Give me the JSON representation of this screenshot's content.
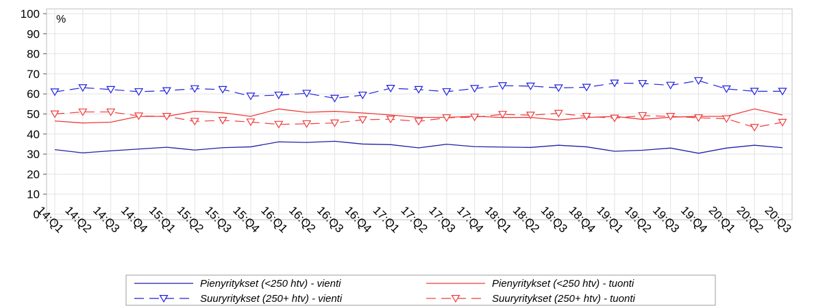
{
  "chart_data": {
    "type": "line",
    "unit_label": "%",
    "ylim": [
      0,
      100
    ],
    "yticks": [
      0,
      10,
      20,
      30,
      40,
      50,
      60,
      70,
      80,
      90,
      100
    ],
    "grid": true,
    "legend_position": "bottom",
    "categories": [
      "14:Q1",
      "14:Q2",
      "14:Q3",
      "14:Q4",
      "15:Q1",
      "15:Q2",
      "15:Q3",
      "15:Q4",
      "16:Q1",
      "16:Q2",
      "16:Q3",
      "16:Q4",
      "17:Q1",
      "17:Q2",
      "17:Q3",
      "17:Q4",
      "18:Q1",
      "18:Q2",
      "18:Q3",
      "18:Q4",
      "19:Q1",
      "19:Q2",
      "19:Q3",
      "19:Q4",
      "20:Q1",
      "20:Q2",
      "20:Q3"
    ],
    "series": [
      {
        "name": "Pienyritykset (<250 htv) - vienti",
        "color": "#1f1fa8",
        "dash": "solid",
        "marker": "none",
        "values": [
          32.2,
          30.6,
          31.6,
          32.5,
          33.4,
          32.0,
          33.2,
          33.6,
          36.1,
          35.8,
          36.4,
          35.0,
          34.7,
          33.1,
          34.9,
          33.7,
          33.5,
          33.3,
          34.4,
          33.6,
          31.4,
          31.9,
          33.0,
          30.4,
          33.0,
          34.4,
          33.2
        ]
      },
      {
        "name": "Pienyritykset (<250 htv) - tuonti",
        "color": "#f03a3a",
        "dash": "solid",
        "marker": "none",
        "values": [
          46.5,
          45.5,
          45.9,
          48.8,
          48.8,
          51.3,
          50.6,
          48.8,
          52.5,
          50.8,
          51.3,
          50.5,
          49.5,
          48.3,
          48.3,
          48.9,
          48.2,
          48.3,
          47.0,
          48.2,
          48.8,
          47.3,
          48.4,
          48.8,
          48.8,
          52.5,
          49.5
        ]
      },
      {
        "name": "Suuryritykset (250+ htv) - vienti",
        "color": "#1f1fe0",
        "dash": "dashed",
        "marker": "triangle-down",
        "values": [
          61.0,
          63.1,
          62.2,
          61.1,
          61.6,
          62.6,
          62.2,
          58.9,
          59.4,
          60.3,
          57.8,
          59.4,
          62.8,
          62.2,
          61.1,
          62.7,
          64.1,
          63.9,
          63.0,
          63.3,
          65.4,
          65.2,
          64.3,
          66.6,
          62.5,
          61.3,
          61.3
        ]
      },
      {
        "name": "Suuryritykset (250+ htv) - tuonti",
        "color": "#f03a3a",
        "dash": "dashed",
        "marker": "triangle-down",
        "values": [
          50.0,
          51.0,
          51.0,
          49.0,
          48.8,
          46.3,
          46.8,
          46.0,
          44.8,
          45.1,
          45.5,
          47.1,
          47.4,
          46.3,
          48.1,
          48.4,
          49.8,
          49.4,
          50.3,
          48.8,
          47.9,
          49.2,
          48.8,
          48.1,
          47.6,
          43.3,
          45.8
        ]
      }
    ]
  }
}
